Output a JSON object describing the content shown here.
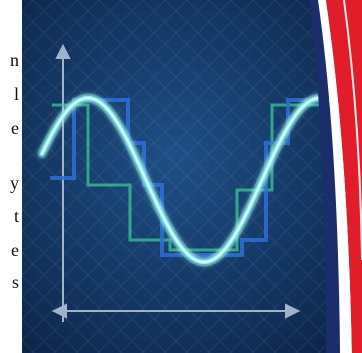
{
  "text_fragments": [
    "n",
    "l",
    "e",
    "y",
    "t",
    "e",
    "s"
  ],
  "illustration": {
    "subject": "sine-wave-over-stepped-square-waves",
    "colors": {
      "background_dark": "#0b2246",
      "background_light": "#1e4f86",
      "sine_wave": "#7fe3e0",
      "square_wave_blue": "#2f6fd6",
      "square_wave_green": "#3fcf9a",
      "axis": "#9fb4cc",
      "ribbon_red": "#e11d2a",
      "ribbon_white": "#ffffff",
      "ribbon_navy": "#1b2d6b"
    }
  }
}
